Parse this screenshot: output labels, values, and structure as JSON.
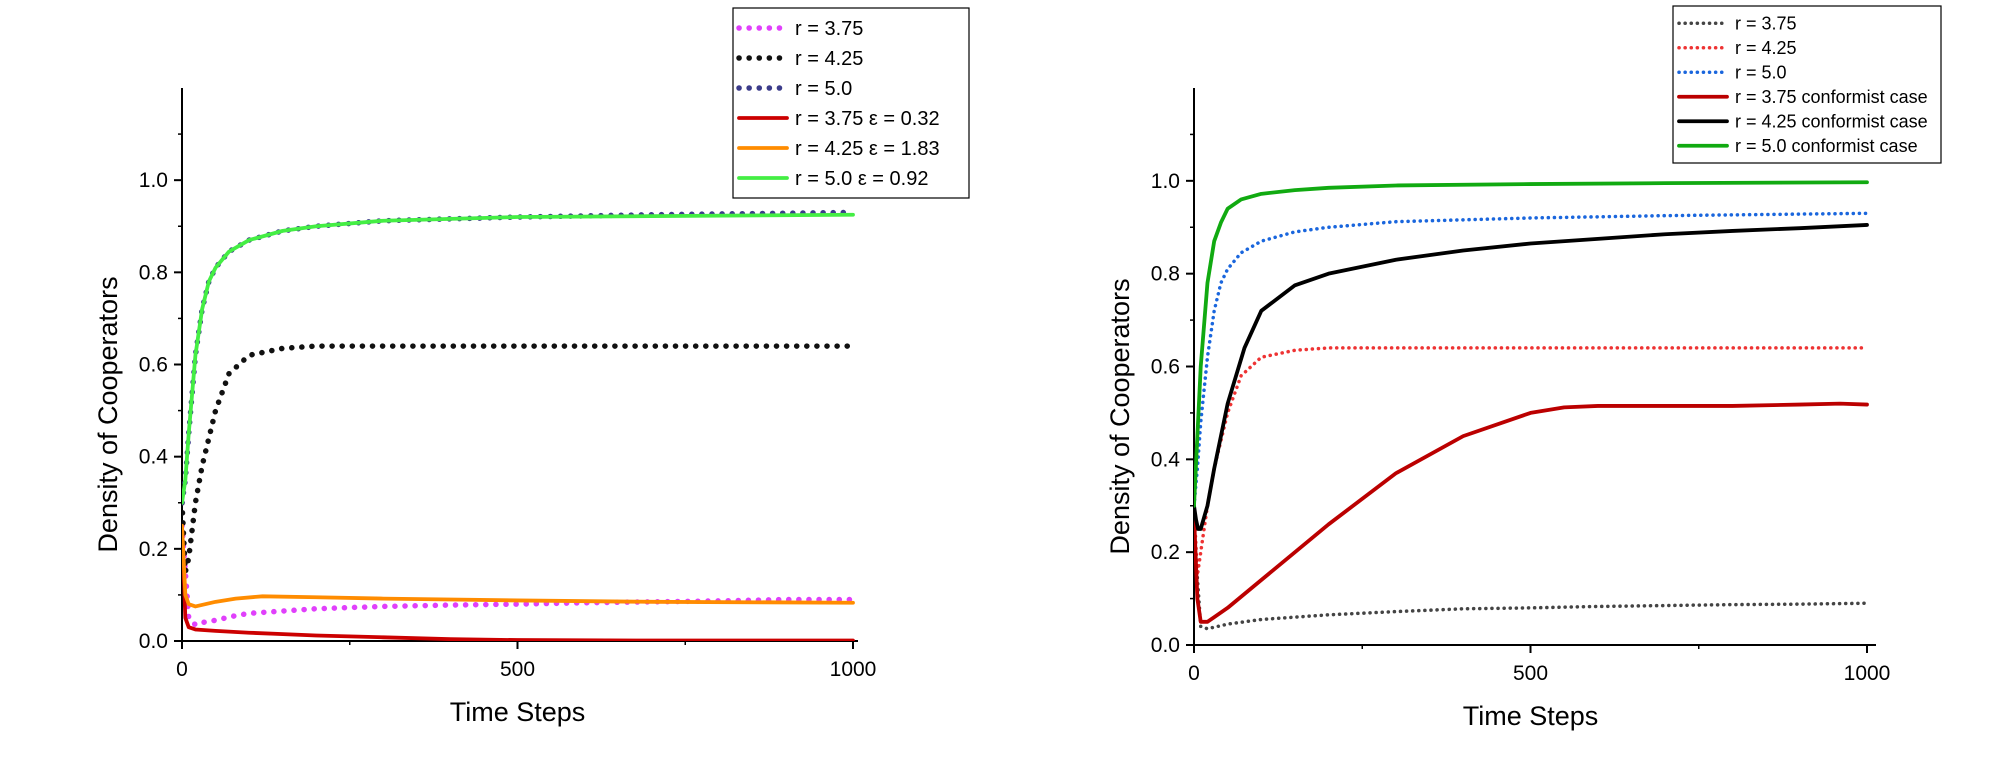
{
  "charts": [
    {
      "id": "left",
      "chart_data": {
        "type": "line",
        "title": "",
        "xlabel": "Time Steps",
        "ylabel": "Density of Cooperators",
        "xlim": [
          0,
          1000
        ],
        "ylim": [
          0,
          1.2
        ],
        "xticks": [
          0,
          500,
          1000
        ],
        "xtick_labels": [
          "0",
          "500",
          "1000"
        ],
        "yticks": [
          0.0,
          0.2,
          0.4,
          0.6,
          0.8,
          1.0
        ],
        "ytick_labels": [
          "0.0",
          "0.2",
          "0.4",
          "0.6",
          "0.8",
          "1.0"
        ],
        "grid": false,
        "legend_position": "top-right",
        "series": [
          {
            "name": "r = 3.75",
            "style": "dotted",
            "color": "#e040fb",
            "x": [
              0,
              10,
              20,
              30,
              50,
              80,
              100,
              150,
              200,
              300,
              400,
              500,
              600,
              700,
              800,
              900,
              1000
            ],
            "y": [
              0.25,
              0.05,
              0.035,
              0.04,
              0.045,
              0.055,
              0.06,
              0.065,
              0.07,
              0.075,
              0.078,
              0.08,
              0.083,
              0.085,
              0.087,
              0.09,
              0.09
            ]
          },
          {
            "name": "r = 4.25",
            "style": "dotted",
            "color": "#111111",
            "x": [
              0,
              5,
              10,
              20,
              30,
              50,
              70,
              100,
              150,
              200,
              300,
              500,
              700,
              1000
            ],
            "y": [
              0.3,
              0.15,
              0.18,
              0.3,
              0.38,
              0.5,
              0.58,
              0.62,
              0.635,
              0.64,
              0.64,
              0.64,
              0.64,
              0.64
            ]
          },
          {
            "name": "r = 5.0",
            "style": "dotted",
            "color": "#3b3b8a",
            "x": [
              0,
              5,
              10,
              20,
              30,
              40,
              50,
              70,
              100,
              150,
              200,
              300,
              500,
              700,
              1000
            ],
            "y": [
              0.3,
              0.35,
              0.45,
              0.62,
              0.72,
              0.78,
              0.81,
              0.845,
              0.87,
              0.89,
              0.9,
              0.912,
              0.92,
              0.925,
              0.93
            ]
          },
          {
            "name": "r = 3.75 ε = 0.32",
            "style": "solid",
            "color": "#cc0000",
            "x": [
              0,
              5,
              10,
              20,
              50,
              100,
              200,
              300,
              400,
              500,
              700,
              1000
            ],
            "y": [
              0.25,
              0.05,
              0.03,
              0.025,
              0.022,
              0.018,
              0.012,
              0.008,
              0.004,
              0.002,
              0.001,
              0.001
            ]
          },
          {
            "name": "r = 4.25 ε = 1.83",
            "style": "solid",
            "color": "#ff8c00",
            "x": [
              0,
              5,
              10,
              20,
              50,
              80,
              120,
              200,
              300,
              400,
              500,
              700,
              1000
            ],
            "y": [
              0.25,
              0.1,
              0.08,
              0.075,
              0.085,
              0.092,
              0.097,
              0.095,
              0.092,
              0.09,
              0.088,
              0.085,
              0.083
            ]
          },
          {
            "name": "r = 5.0 ε = 0.92",
            "style": "solid",
            "color": "#44ee44",
            "x": [
              0,
              5,
              10,
              20,
              30,
              40,
              50,
              70,
              100,
              150,
              200,
              300,
              500,
              700,
              1000
            ],
            "y": [
              0.3,
              0.35,
              0.45,
              0.62,
              0.72,
              0.78,
              0.81,
              0.845,
              0.87,
              0.89,
              0.9,
              0.912,
              0.92,
              0.922,
              0.925
            ]
          }
        ]
      }
    },
    {
      "id": "right",
      "chart_data": {
        "type": "line",
        "title": "",
        "xlabel": "Time Steps",
        "ylabel": "Density of Cooperators",
        "xlim": [
          0,
          1000
        ],
        "ylim": [
          0,
          1.2
        ],
        "xticks": [
          0,
          500,
          1000
        ],
        "xtick_labels": [
          "0",
          "500",
          "1000"
        ],
        "yticks": [
          0.0,
          0.2,
          0.4,
          0.6,
          0.8,
          1.0
        ],
        "ytick_labels": [
          "0.0",
          "0.2",
          "0.4",
          "0.6",
          "0.8",
          "1.0"
        ],
        "grid": false,
        "legend_position": "top-right",
        "series": [
          {
            "name": "r = 3.75",
            "style": "dotted-thin",
            "color": "#444444",
            "x": [
              0,
              10,
              20,
              50,
              100,
              200,
              300,
              400,
              500,
              600,
              700,
              800,
              900,
              1000
            ],
            "y": [
              0.25,
              0.04,
              0.035,
              0.045,
              0.055,
              0.065,
              0.072,
              0.078,
              0.08,
              0.083,
              0.085,
              0.087,
              0.088,
              0.09
            ]
          },
          {
            "name": "r = 4.25",
            "style": "dotted-thin",
            "color": "#ee3333",
            "x": [
              0,
              5,
              10,
              20,
              30,
              50,
              70,
              100,
              150,
              200,
              300,
              500,
              700,
              1000
            ],
            "y": [
              0.3,
              0.15,
              0.2,
              0.3,
              0.38,
              0.5,
              0.58,
              0.62,
              0.635,
              0.64,
              0.64,
              0.64,
              0.64,
              0.64
            ]
          },
          {
            "name": "r = 5.0",
            "style": "dotted-thin",
            "color": "#1a66dd",
            "x": [
              0,
              5,
              10,
              20,
              30,
              40,
              50,
              70,
              100,
              150,
              200,
              300,
              500,
              700,
              1000
            ],
            "y": [
              0.3,
              0.38,
              0.48,
              0.62,
              0.72,
              0.78,
              0.81,
              0.845,
              0.87,
              0.89,
              0.9,
              0.912,
              0.92,
              0.925,
              0.93
            ]
          },
          {
            "name": "r = 3.75 conformist case",
            "style": "solid",
            "color": "#bb0000",
            "x": [
              0,
              5,
              10,
              20,
              30,
              50,
              100,
              150,
              200,
              300,
              400,
              500,
              550,
              600,
              700,
              800,
              900,
              960,
              1000
            ],
            "y": [
              0.28,
              0.1,
              0.05,
              0.05,
              0.06,
              0.08,
              0.14,
              0.2,
              0.26,
              0.37,
              0.45,
              0.5,
              0.512,
              0.515,
              0.515,
              0.515,
              0.518,
              0.52,
              0.518
            ]
          },
          {
            "name": "r = 4.25 conformist case",
            "style": "solid",
            "color": "#000000",
            "x": [
              0,
              3,
              6,
              10,
              20,
              30,
              50,
              75,
              100,
              150,
              200,
              300,
              400,
              500,
              600,
              700,
              800,
              900,
              1000
            ],
            "y": [
              0.3,
              0.27,
              0.25,
              0.25,
              0.3,
              0.38,
              0.52,
              0.64,
              0.72,
              0.775,
              0.8,
              0.83,
              0.85,
              0.865,
              0.875,
              0.885,
              0.892,
              0.898,
              0.905
            ]
          },
          {
            "name": "r = 5.0 conformist case",
            "style": "solid",
            "color": "#11aa11",
            "x": [
              0,
              5,
              10,
              20,
              30,
              40,
              50,
              70,
              100,
              150,
              200,
              300,
              500,
              700,
              1000
            ],
            "y": [
              0.3,
              0.45,
              0.6,
              0.78,
              0.87,
              0.91,
              0.94,
              0.96,
              0.972,
              0.98,
              0.985,
              0.99,
              0.993,
              0.995,
              0.997
            ]
          }
        ]
      }
    }
  ]
}
